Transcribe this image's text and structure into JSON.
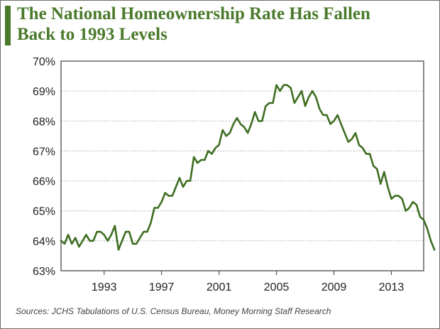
{
  "title_lines": [
    "The National Homeownership Rate Has Fallen",
    "Back to 1993 Levels"
  ],
  "source": "Sources: JCHS Tabulations of U.S. Census Bureau, Money Morning Staff Research",
  "colors": {
    "accent": "#4a7a2c",
    "line": "#3f6e22",
    "axis": "#555555",
    "grid": "#b5b5b5"
  },
  "chart_data": {
    "type": "line",
    "title": "The National Homeownership Rate Has Fallen Back to 1993 Levels",
    "xlabel": "",
    "ylabel": "",
    "xlim": [
      1990.0,
      2015.25
    ],
    "ylim": [
      63,
      70
    ],
    "y_ticks": [
      63,
      64,
      65,
      66,
      67,
      68,
      69,
      70
    ],
    "y_tick_labels": [
      "63%",
      "64%",
      "65%",
      "66%",
      "67%",
      "68%",
      "69%",
      "70%"
    ],
    "x_ticks": [
      1993,
      1997,
      2001,
      2005,
      2009,
      2013
    ],
    "x_tick_labels": [
      "1993",
      "1997",
      "2001",
      "2005",
      "2009",
      "2013"
    ],
    "grid": "horizontal",
    "legend": "none",
    "series": [
      {
        "start": 1990.0,
        "step": 0.25,
        "values": [
          64.0,
          63.9,
          64.2,
          63.9,
          64.1,
          63.8,
          64.0,
          64.2,
          64.0,
          64.0,
          64.3,
          64.3,
          64.2,
          64.0,
          64.2,
          64.5,
          63.7,
          64.0,
          64.3,
          64.3,
          63.9,
          63.9,
          64.1,
          64.3,
          64.3,
          64.6,
          65.1,
          65.1,
          65.3,
          65.6,
          65.5,
          65.5,
          65.8,
          66.1,
          65.8,
          66.0,
          66.0,
          66.8,
          66.6,
          66.7,
          66.7,
          67.0,
          66.9,
          67.1,
          67.2,
          67.7,
          67.5,
          67.6,
          67.9,
          68.1,
          67.9,
          67.8,
          67.6,
          67.9,
          68.3,
          68.0,
          68.0,
          68.5,
          68.6,
          68.6,
          69.2,
          69.0,
          69.2,
          69.2,
          69.1,
          68.6,
          68.8,
          69.0,
          68.5,
          68.8,
          69.0,
          68.8,
          68.4,
          68.2,
          68.2,
          67.9,
          68.0,
          68.2,
          67.9,
          67.6,
          67.3,
          67.4,
          67.6,
          67.2,
          67.1,
          66.9,
          66.9,
          66.5,
          66.4,
          65.9,
          66.3,
          65.8,
          65.4,
          65.5,
          65.5,
          65.4,
          65.0,
          65.1,
          65.3,
          65.2,
          64.8,
          64.7,
          64.4,
          64.0,
          63.7
        ]
      }
    ]
  }
}
